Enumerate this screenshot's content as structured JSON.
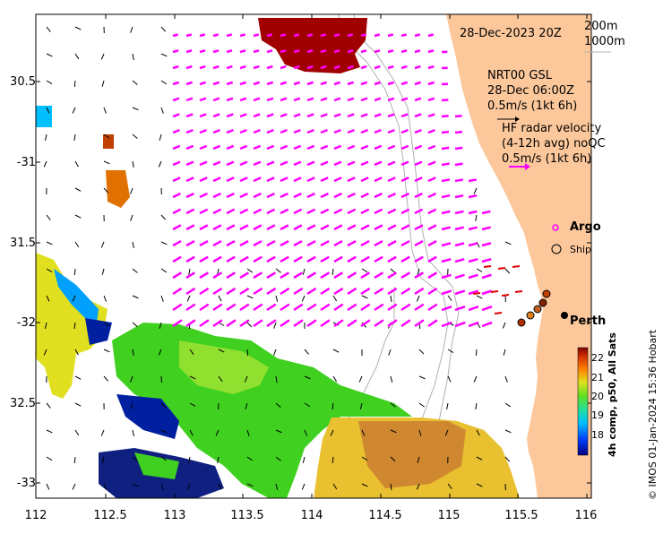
{
  "map": {
    "date_title": "28-Dec-2023 20Z",
    "depth_legend": [
      "200m",
      "1000m"
    ],
    "gsl_label": [
      "NRT00 GSL",
      "28-Dec 06:00Z",
      "0.5m/s (1kt 6h)"
    ],
    "hf_label": [
      "HF radar velocity",
      "(4-12h avg) noQC",
      "0.5m/s (1kt 6h)"
    ],
    "argo_label": "Argo",
    "ship_label": "Ship",
    "city_label": "Perth",
    "lat_ticks": [
      "30.5",
      "-31",
      "31.5",
      "-32",
      "32.5",
      "-33"
    ],
    "lon_ticks": [
      "112",
      "112.5",
      "113",
      "113.5",
      "114",
      "114.5",
      "115",
      "115.5",
      "116"
    ],
    "colorbar_ticks": [
      "22",
      "21",
      "20",
      "19",
      "18"
    ],
    "colorbar_title": "4h comp, p50, All Sats",
    "credit": "© IMOS 01-Jan-2024 15:36 Hobart",
    "colors": {
      "land": "#fcc89b",
      "hf_vectors": "#ff00ff",
      "gsl_vectors": "#000000",
      "coastal_vectors": "#e00000",
      "isobaths": "#b0b0b0"
    }
  }
}
